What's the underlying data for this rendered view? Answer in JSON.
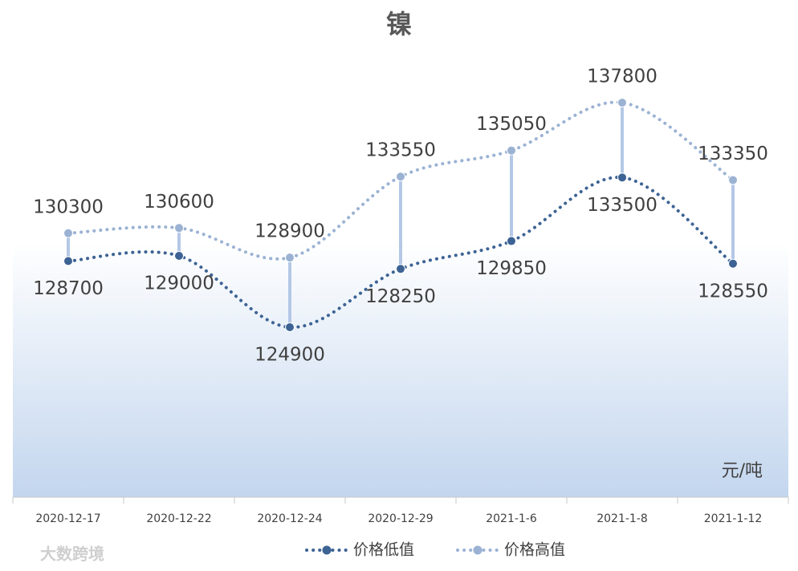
{
  "chart_data": {
    "type": "line",
    "title": "镍",
    "unit_label": "元/吨",
    "watermark": "大数跨境",
    "categories": [
      "2020-12-17",
      "2020-12-22",
      "2020-12-24",
      "2020-12-29",
      "2021-1-6",
      "2021-1-8",
      "2021-1-12"
    ],
    "series": [
      {
        "name": "价格低值",
        "color": "#3d6394",
        "values": [
          128700,
          129000,
          124900,
          128250,
          129850,
          133500,
          128550
        ]
      },
      {
        "name": "价格高值",
        "color": "#9bb2d3",
        "values": [
          130300,
          130600,
          128900,
          133550,
          135050,
          137800,
          133350
        ]
      }
    ],
    "high_low_lines": true
  }
}
